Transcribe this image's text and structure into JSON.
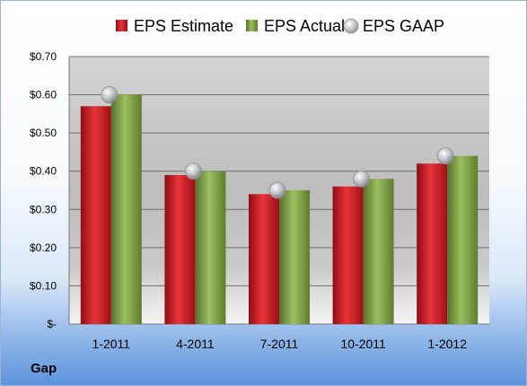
{
  "company": "Gap",
  "colors": {
    "estimate": "#c0161c",
    "actual": "#77953a",
    "gaap": "#b9bcc2"
  },
  "chart_data": {
    "type": "bar",
    "categories": [
      "1-2011",
      "4-2011",
      "7-2011",
      "10-2011",
      "1-2012"
    ],
    "series": [
      {
        "name": "EPS Estimate",
        "type": "bar",
        "values": [
          0.57,
          0.39,
          0.34,
          0.36,
          0.42
        ]
      },
      {
        "name": "EPS Actual",
        "type": "bar",
        "values": [
          0.6,
          0.4,
          0.35,
          0.38,
          0.44
        ]
      },
      {
        "name": "EPS GAAP",
        "type": "marker",
        "values": [
          0.6,
          0.4,
          0.35,
          0.38,
          0.44
        ]
      }
    ],
    "y_ticks": [
      {
        "value": 0.0,
        "label": "$-"
      },
      {
        "value": 0.1,
        "label": "$0.10"
      },
      {
        "value": 0.2,
        "label": "$0.20"
      },
      {
        "value": 0.3,
        "label": "$0.30"
      },
      {
        "value": 0.4,
        "label": "$0.40"
      },
      {
        "value": 0.5,
        "label": "$0.50"
      },
      {
        "value": 0.6,
        "label": "$0.60"
      },
      {
        "value": 0.7,
        "label": "$0.70"
      }
    ],
    "ylim": [
      0,
      0.7
    ],
    "grid": true,
    "legend_position": "top"
  }
}
